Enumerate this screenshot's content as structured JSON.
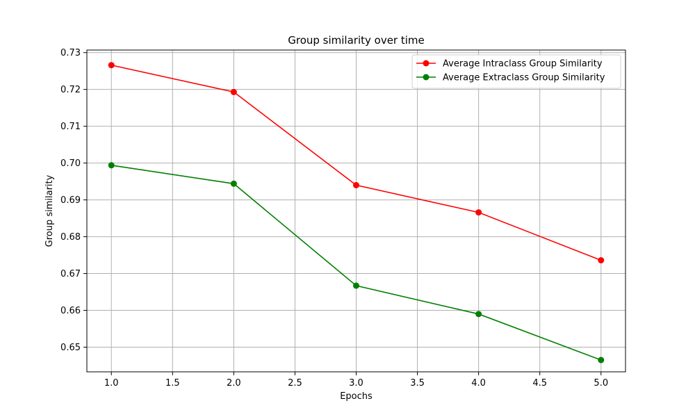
{
  "chart_data": {
    "type": "line",
    "title": "Group similarity over time",
    "xlabel": "Epochs",
    "ylabel": "Group similarity",
    "x": [
      1.0,
      2.0,
      3.0,
      4.0,
      5.0
    ],
    "xlim": [
      0.8,
      5.2
    ],
    "ylim": [
      0.6433,
      0.7307
    ],
    "xticks": [
      1.0,
      1.5,
      2.0,
      2.5,
      3.0,
      3.5,
      4.0,
      4.5,
      5.0
    ],
    "xtick_labels": [
      "1.0",
      "1.5",
      "2.0",
      "2.5",
      "3.0",
      "3.5",
      "4.0",
      "4.5",
      "5.0"
    ],
    "yticks": [
      0.65,
      0.66,
      0.67,
      0.68,
      0.69,
      0.7,
      0.71,
      0.72,
      0.73
    ],
    "ytick_labels": [
      "0.65",
      "0.66",
      "0.67",
      "0.68",
      "0.69",
      "0.70",
      "0.71",
      "0.72",
      "0.73"
    ],
    "grid": true,
    "legend_position": "top-right",
    "series": [
      {
        "name": "Average Intraclass Group Similarity",
        "color": "#ff0000",
        "marker": "circle",
        "values": [
          0.7266,
          0.7193,
          0.694,
          0.6866,
          0.6736
        ]
      },
      {
        "name": "Average Extraclass Group Similarity",
        "color": "#008000",
        "marker": "circle",
        "values": [
          0.6994,
          0.6944,
          0.6667,
          0.659,
          0.6465
        ]
      }
    ]
  }
}
